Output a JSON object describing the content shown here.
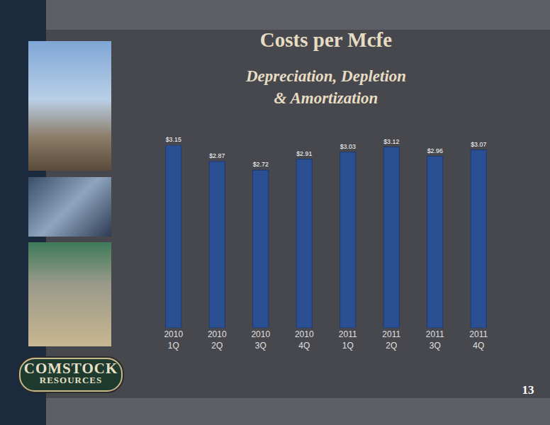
{
  "chart_data": {
    "type": "bar",
    "title": "Costs per Mcfe",
    "subtitle": [
      "Depreciation, Depletion",
      "& Amortization"
    ],
    "categories": [
      "2010\n1Q",
      "2010\n2Q",
      "2010\n3Q",
      "2010\n4Q",
      "2011\n1Q",
      "2011\n2Q",
      "2011\n3Q",
      "2011\n4Q"
    ],
    "values": [
      3.15,
      2.87,
      2.72,
      2.91,
      3.03,
      3.12,
      2.96,
      3.07
    ],
    "value_labels": [
      "$3.15",
      "$2.87",
      "$2.72",
      "$2.91",
      "$3.03",
      "$3.12",
      "$2.96",
      "$3.07"
    ],
    "color": "#2b4f93",
    "ylim": [
      0,
      3.15
    ],
    "grid": false,
    "data_labels": true,
    "tick_labels": "x"
  },
  "logo": [
    "COMSTOCK",
    "RESOURCES"
  ],
  "page_number": "13"
}
